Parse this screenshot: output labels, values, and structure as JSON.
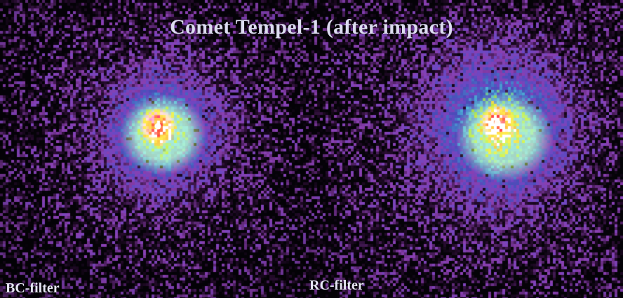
{
  "image": {
    "title": "Comet Tempel-1 (after impact)",
    "panels": [
      {
        "label": "BC-filter"
      },
      {
        "label": "RC-filter"
      }
    ]
  },
  "colors": {
    "background": "#050308",
    "outer": "#8a3fb0",
    "mid": "#4b4bb8",
    "inner": "#4fb7d8",
    "green": "#9bd23a",
    "yellow": "#f3c23a",
    "red": "#e8292c",
    "core": "#ffffff",
    "title_text": "#dcdcf0"
  }
}
